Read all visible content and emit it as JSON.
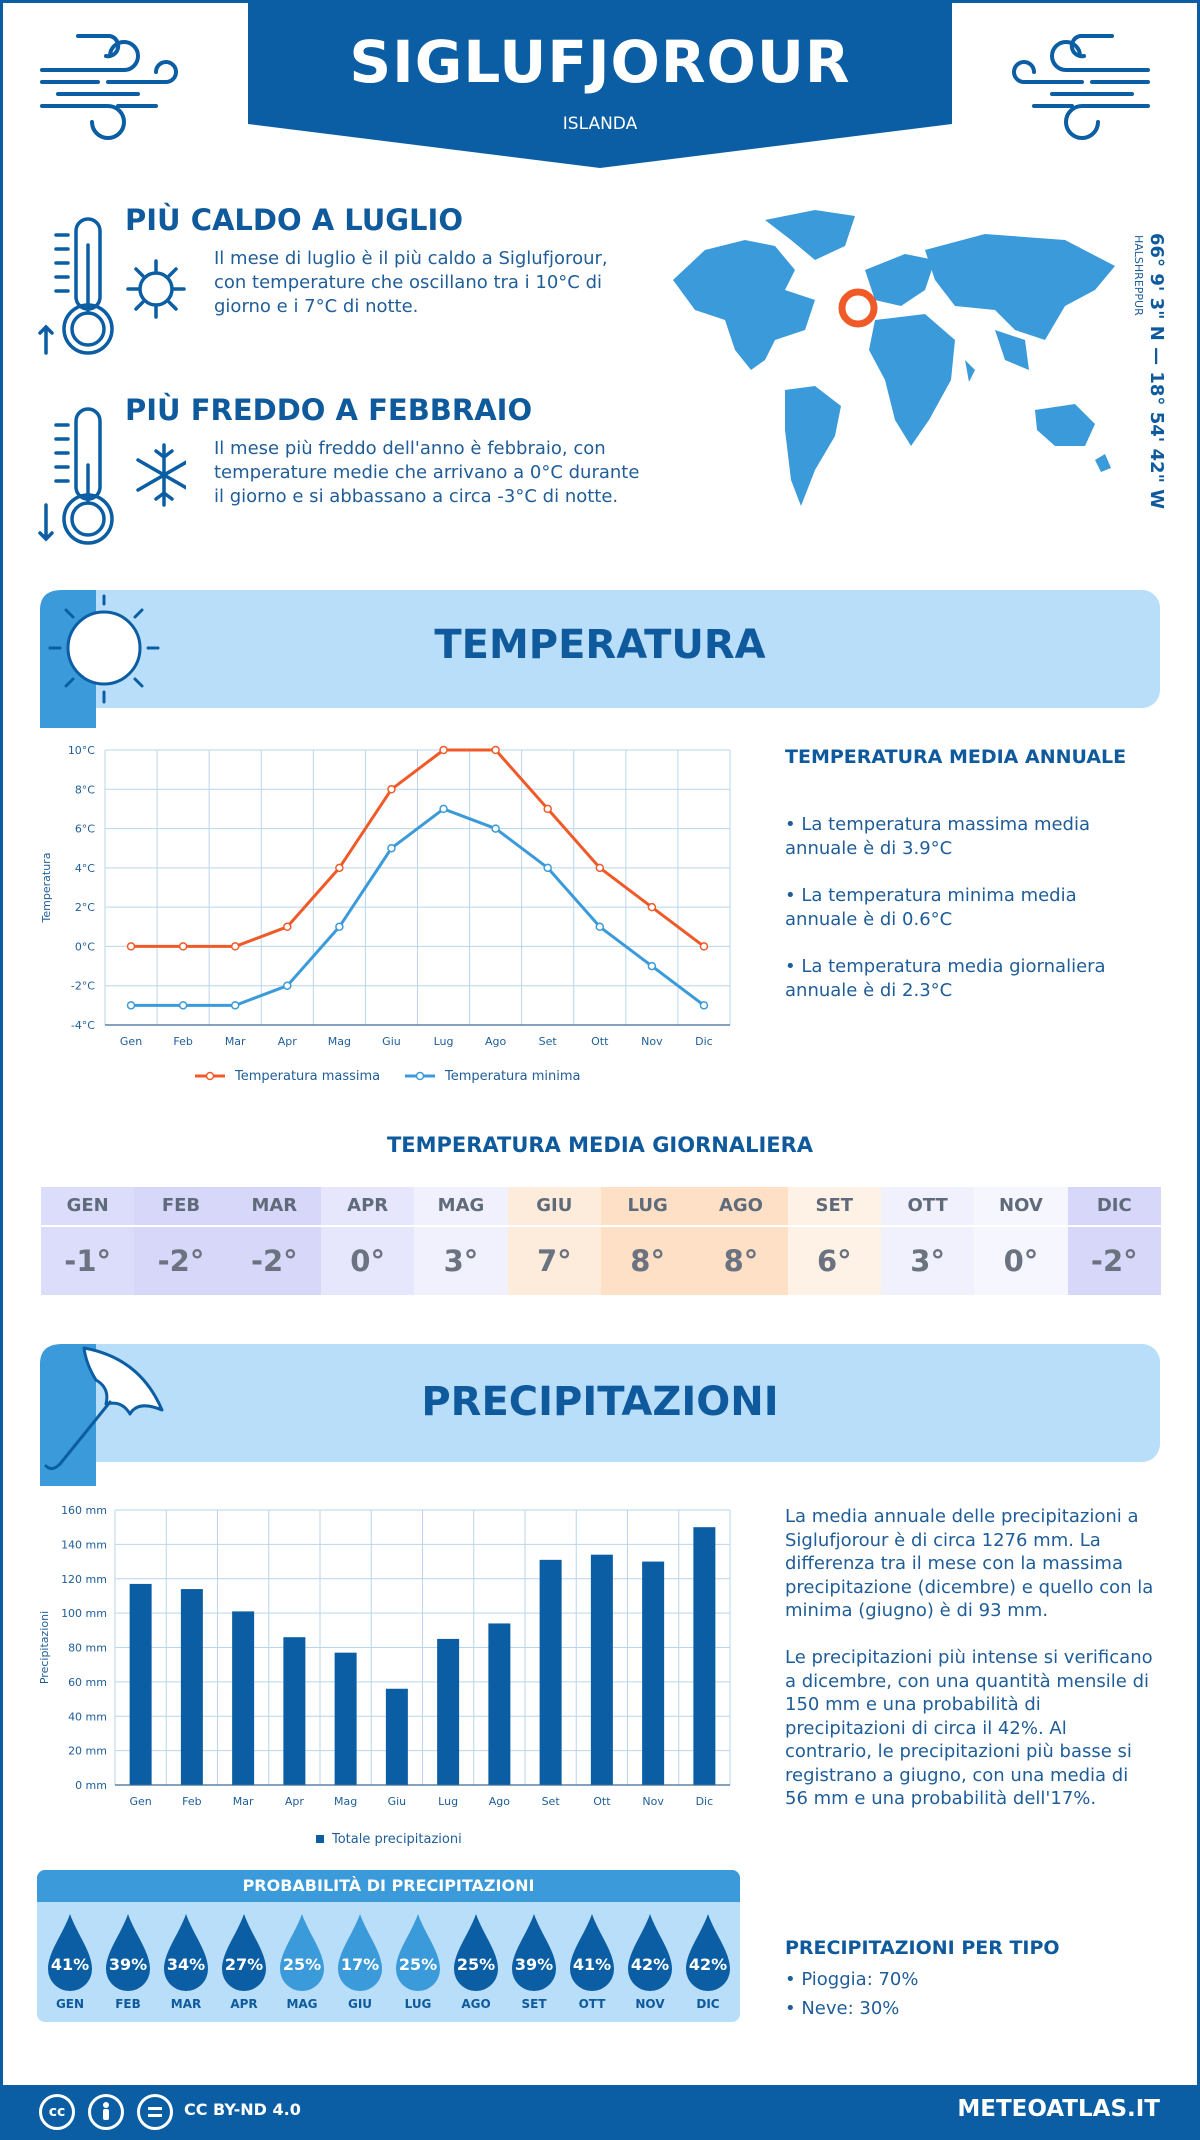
{
  "header": {
    "city": "SIGLUFJOROUR",
    "country": "ISLANDA"
  },
  "coords": {
    "value": "66° 9' 3\" N — 18° 54' 42\" W",
    "region": "HALSHREPPUR"
  },
  "warm": {
    "title": "PIÙ CALDO A LUGLIO",
    "text": "Il mese di luglio è il più caldo a Siglufjorour, con temperature che oscillano tra i 10°C di giorno e i 7°C di notte."
  },
  "cold": {
    "title": "PIÙ FREDDO A FEBBRAIO",
    "text": "Il mese più freddo dell'anno è febbraio, con temperature medie che arrivano a 0°C durante il giorno e si abbassano a circa -3°C di notte."
  },
  "temperature_section": {
    "title": "TEMPERATURA",
    "annual_title": "TEMPERATURA MEDIA ANNUALE",
    "bullets": [
      "• La temperatura massima media annuale è di 3.9°C",
      "• La temperatura minima media annuale è di 0.6°C",
      "• La temperatura media giornaliera annuale è di 2.3°C"
    ],
    "daily_title": "TEMPERATURA MEDIA GIORNALIERA",
    "daily": [
      {
        "month": "GEN",
        "value": "-1°",
        "bg": "#dcdcfb"
      },
      {
        "month": "FEB",
        "value": "-2°",
        "bg": "#d7d7fa"
      },
      {
        "month": "MAR",
        "value": "-2°",
        "bg": "#d7d7fa"
      },
      {
        "month": "APR",
        "value": "0°",
        "bg": "#e6e6fc"
      },
      {
        "month": "MAG",
        "value": "3°",
        "bg": "#f1f1fd"
      },
      {
        "month": "GIU",
        "value": "7°",
        "bg": "#fdecdc"
      },
      {
        "month": "LUG",
        "value": "8°",
        "bg": "#fde0c6"
      },
      {
        "month": "AGO",
        "value": "8°",
        "bg": "#fde0c6"
      },
      {
        "month": "SET",
        "value": "6°",
        "bg": "#fef2e6"
      },
      {
        "month": "OTT",
        "value": "3°",
        "bg": "#f1f1fd"
      },
      {
        "month": "NOV",
        "value": "0°",
        "bg": "#f6f6fe"
      },
      {
        "month": "DIC",
        "value": "-2°",
        "bg": "#d7d7fa"
      }
    ]
  },
  "precipitation_section": {
    "title": "PRECIPITAZIONI",
    "text1": "La media annuale delle precipitazioni a Siglufjorour è di circa 1276 mm. La differenza tra il mese con la massima precipitazione (dicembre) e quello con la minima (giugno) è di 93 mm.",
    "text2": "Le precipitazioni più intense si verificano a dicembre, con una quantità mensile di 150 mm e una probabilità di precipitazioni di circa il 42%. Al contrario, le precipitazioni più basse si registrano a giugno, con una media di 56 mm e una probabilità dell'17%.",
    "prob_title": "PROBABILITÀ DI PRECIPITAZIONI",
    "probabilities": [
      {
        "month": "GEN",
        "value": "41%",
        "color": "#0b5ea3"
      },
      {
        "month": "FEB",
        "value": "39%",
        "color": "#0b5ea3"
      },
      {
        "month": "MAR",
        "value": "34%",
        "color": "#0b5ea3"
      },
      {
        "month": "APR",
        "value": "27%",
        "color": "#0b5ea3"
      },
      {
        "month": "MAG",
        "value": "25%",
        "color": "#3b9ad9"
      },
      {
        "month": "GIU",
        "value": "17%",
        "color": "#3b9ad9"
      },
      {
        "month": "LUG",
        "value": "25%",
        "color": "#3b9ad9"
      },
      {
        "month": "AGO",
        "value": "25%",
        "color": "#0b5ea3"
      },
      {
        "month": "SET",
        "value": "39%",
        "color": "#0b5ea3"
      },
      {
        "month": "OTT",
        "value": "41%",
        "color": "#0b5ea3"
      },
      {
        "month": "NOV",
        "value": "42%",
        "color": "#0b5ea3"
      },
      {
        "month": "DIC",
        "value": "42%",
        "color": "#0b5ea3"
      }
    ],
    "type_title": "PRECIPITAZIONI PER TIPO",
    "types": [
      "• Pioggia: 70%",
      "• Neve: 30%"
    ]
  },
  "footer": {
    "license": "CC BY-ND 4.0",
    "site": "METEOATLAS.IT"
  },
  "chart_data": [
    {
      "type": "line",
      "categories": [
        "Gen",
        "Feb",
        "Mar",
        "Apr",
        "Mag",
        "Giu",
        "Lug",
        "Ago",
        "Set",
        "Ott",
        "Nov",
        "Dic"
      ],
      "series": [
        {
          "name": "Temperatura massima",
          "values": [
            0,
            0,
            0,
            1,
            4,
            8,
            10,
            10,
            7,
            4,
            2,
            0
          ],
          "color": "#f05a28"
        },
        {
          "name": "Temperatura minima",
          "values": [
            -3,
            -3,
            -3,
            -2,
            1,
            5,
            7,
            6,
            4,
            1,
            -1,
            -3
          ],
          "color": "#3b9ad9"
        }
      ],
      "ylabel": "Temperatura",
      "yticks": [
        "-4°C",
        "-2°C",
        "0°C",
        "2°C",
        "4°C",
        "6°C",
        "8°C",
        "10°C"
      ],
      "ylim": [
        -4,
        10
      ],
      "grid": true,
      "legend": "bottom"
    },
    {
      "type": "bar",
      "categories": [
        "Gen",
        "Feb",
        "Mar",
        "Apr",
        "Mag",
        "Giu",
        "Lug",
        "Ago",
        "Set",
        "Ott",
        "Nov",
        "Dic"
      ],
      "series": [
        {
          "name": "Totale precipitazioni",
          "values": [
            117,
            114,
            101,
            86,
            77,
            56,
            85,
            94,
            131,
            134,
            130,
            150
          ],
          "color": "#0b5ea3"
        }
      ],
      "ylabel": "Precipitazioni",
      "yticks": [
        "0 mm",
        "20 mm",
        "40 mm",
        "60 mm",
        "80 mm",
        "100 mm",
        "120 mm",
        "140 mm",
        "160 mm"
      ],
      "ylim": [
        0,
        160
      ],
      "grid": true,
      "legend": "bottom"
    }
  ]
}
